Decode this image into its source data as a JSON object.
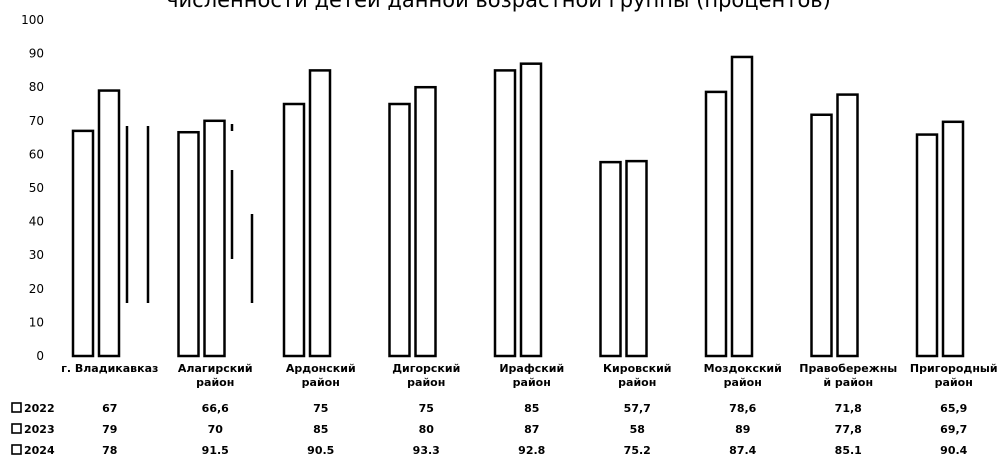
{
  "chart_data": {
    "type": "bar",
    "title": "численности детей данной возрастной группы (процентов)",
    "ylim": [
      0,
      100
    ],
    "yticks": [
      0,
      10,
      20,
      30,
      40,
      50,
      60,
      70,
      80,
      90,
      100
    ],
    "categories": [
      [
        "г. Владикавказ"
      ],
      [
        "Алагирский",
        "район"
      ],
      [
        "Ардонский",
        "район"
      ],
      [
        "Дигорский",
        "район"
      ],
      [
        "Ирафский",
        "район"
      ],
      [
        "Кировский",
        "район"
      ],
      [
        "Моздокский",
        "район"
      ],
      [
        "Правобережны",
        "й район"
      ],
      [
        "Пригородный",
        "район"
      ]
    ],
    "series": [
      {
        "name": "2022",
        "values": [
          67,
          66.6,
          75,
          75,
          85,
          57.7,
          78.6,
          71.8,
          65.9
        ],
        "labels": [
          "67",
          "66,6",
          "75",
          "75",
          "85",
          "57,7",
          "78,6",
          "71,8",
          "65,9"
        ]
      },
      {
        "name": "2023",
        "values": [
          79,
          70,
          85,
          80,
          87,
          58,
          89,
          77.8,
          69.7
        ],
        "labels": [
          "79",
          "70",
          "85",
          "80",
          "87",
          "58",
          "89",
          "77,8",
          "69,7"
        ]
      },
      {
        "name": "2024",
        "values": [
          78,
          91.5,
          90.5,
          93.3,
          92.8,
          75.2,
          87.4,
          85.1,
          90.4
        ],
        "labels": [
          "78",
          "91.5",
          "90.5",
          "93.3",
          "92.8",
          "75.2",
          "87.4",
          "85.1",
          "90.4"
        ]
      }
    ],
    "grid": false,
    "legend": "data-table-below"
  }
}
